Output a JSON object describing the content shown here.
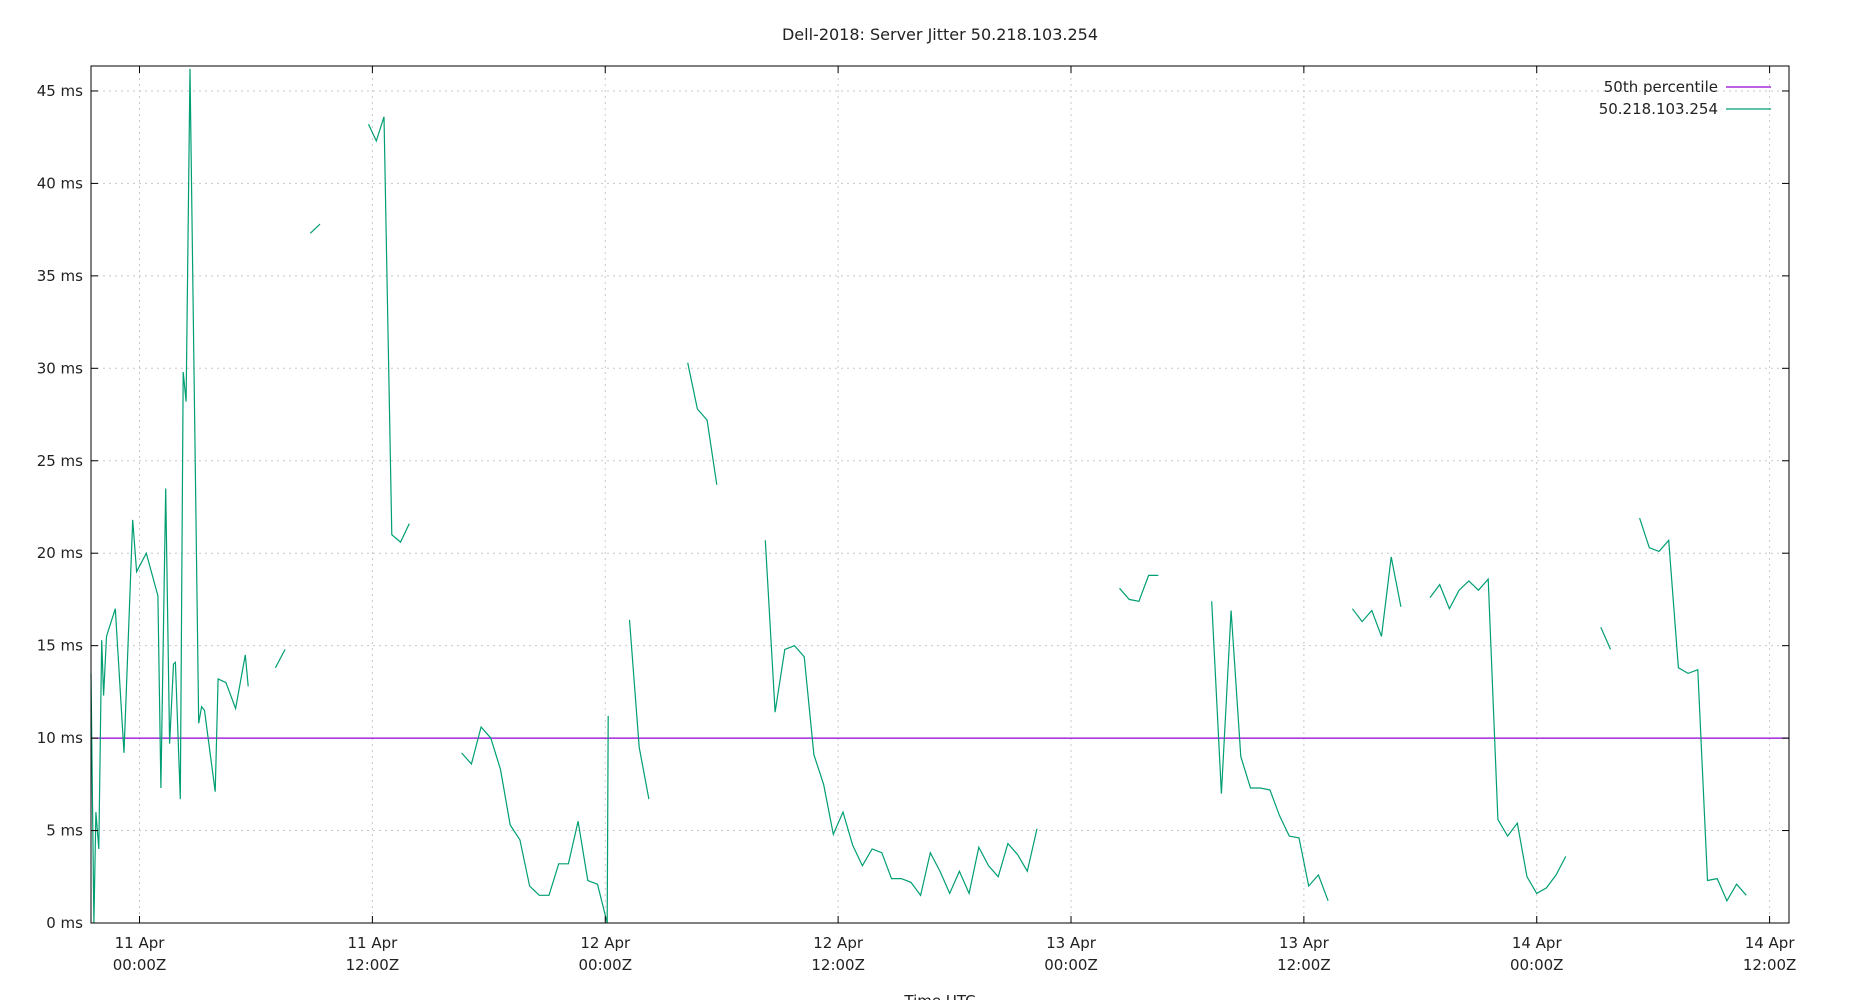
{
  "chart_data": {
    "type": "line",
    "title": "Dell-2018: Server Jitter 50.218.103.254",
    "xlabel": "Time UTC",
    "ylabel": "",
    "x_unit": "hours since 11 Apr 00:00Z",
    "xlim": [
      -2.5,
      85
    ],
    "ylim": [
      0,
      45
    ],
    "y_ticks": [
      0,
      5,
      10,
      15,
      20,
      25,
      30,
      35,
      40,
      45
    ],
    "y_tick_labels": [
      "0 ms",
      "5 ms",
      "10 ms",
      "15 ms",
      "20 ms",
      "25 ms",
      "30 ms",
      "35 ms",
      "40 ms",
      "45 ms"
    ],
    "x_ticks": [
      {
        "x": 0,
        "line1": "11 Apr",
        "line2": "00:00Z"
      },
      {
        "x": 12,
        "line1": "11 Apr",
        "line2": "12:00Z"
      },
      {
        "x": 24,
        "line1": "12 Apr",
        "line2": "00:00Z"
      },
      {
        "x": 36,
        "line1": "12 Apr",
        "line2": "12:00Z"
      },
      {
        "x": 48,
        "line1": "13 Apr",
        "line2": "00:00Z"
      },
      {
        "x": 60,
        "line1": "13 Apr",
        "line2": "12:00Z"
      },
      {
        "x": 72,
        "line1": "14 Apr",
        "line2": "00:00Z"
      },
      {
        "x": 84,
        "line1": "14 Apr",
        "line2": "12:00Z"
      }
    ],
    "grid": true,
    "legend_position": "top-right",
    "series": [
      {
        "name": "50th percentile",
        "color": "#9400d3",
        "constant": 10.0
      },
      {
        "name": "50.218.103.254",
        "color": "#009e73",
        "segments": [
          [
            [
              -2.5,
              13.5
            ],
            [
              -2.35,
              0.0
            ],
            [
              -2.25,
              6.0
            ],
            [
              -2.1,
              4.0
            ],
            [
              -1.95,
              15.3
            ],
            [
              -1.85,
              12.3
            ],
            [
              -1.7,
              15.5
            ],
            [
              -1.25,
              17.0
            ],
            [
              -0.8,
              9.2
            ],
            [
              -0.35,
              21.8
            ],
            [
              -0.15,
              19.0
            ],
            [
              0.35,
              20.0
            ],
            [
              0.95,
              17.7
            ],
            [
              1.1,
              7.3
            ],
            [
              1.35,
              23.5
            ],
            [
              1.55,
              9.7
            ],
            [
              1.75,
              14.0
            ],
            [
              1.85,
              14.1
            ],
            [
              2.1,
              6.7
            ],
            [
              2.25,
              29.8
            ],
            [
              2.4,
              28.2
            ],
            [
              2.6,
              46.2
            ],
            [
              3.05,
              10.8
            ],
            [
              3.2,
              11.7
            ],
            [
              3.35,
              11.5
            ],
            [
              3.9,
              7.1
            ],
            [
              4.05,
              13.2
            ],
            [
              4.45,
              13.0
            ],
            [
              4.95,
              11.6
            ],
            [
              5.45,
              14.5
            ],
            [
              5.6,
              12.8
            ]
          ],
          [
            [
              7.0,
              13.8
            ],
            [
              7.5,
              14.8
            ]
          ],
          [
            [
              8.8,
              37.3
            ],
            [
              9.3,
              37.8
            ]
          ],
          [
            [
              11.8,
              43.2
            ],
            [
              12.2,
              42.3
            ],
            [
              12.6,
              43.6
            ],
            [
              13.0,
              21.0
            ],
            [
              13.45,
              20.6
            ],
            [
              13.9,
              21.6
            ]
          ],
          [
            [
              16.6,
              9.2
            ],
            [
              17.1,
              8.6
            ],
            [
              17.6,
              10.6
            ],
            [
              18.1,
              10.0
            ],
            [
              18.6,
              8.3
            ],
            [
              19.1,
              5.3
            ],
            [
              19.6,
              4.5
            ],
            [
              20.1,
              2.0
            ],
            [
              20.6,
              1.5
            ],
            [
              21.1,
              1.5
            ],
            [
              21.6,
              3.2
            ],
            [
              22.1,
              3.2
            ],
            [
              22.6,
              5.5
            ],
            [
              23.1,
              2.3
            ],
            [
              23.6,
              2.1
            ],
            [
              24.1,
              0.0
            ],
            [
              24.15,
              11.2
            ]
          ],
          [
            [
              25.25,
              16.4
            ],
            [
              25.75,
              9.5
            ],
            [
              26.25,
              6.7
            ]
          ],
          [
            [
              28.25,
              30.3
            ],
            [
              28.75,
              27.8
            ],
            [
              29.25,
              27.2
            ],
            [
              29.75,
              23.7
            ]
          ],
          [
            [
              32.25,
              20.7
            ],
            [
              32.75,
              11.4
            ],
            [
              33.25,
              14.8
            ],
            [
              33.75,
              15.0
            ],
            [
              34.25,
              14.4
            ],
            [
              34.75,
              9.1
            ],
            [
              35.25,
              7.5
            ],
            [
              35.75,
              4.8
            ],
            [
              36.25,
              6.0
            ],
            [
              36.75,
              4.2
            ],
            [
              37.25,
              3.1
            ],
            [
              37.75,
              4.0
            ],
            [
              38.25,
              3.8
            ],
            [
              38.75,
              2.4
            ],
            [
              39.25,
              2.4
            ],
            [
              39.75,
              2.2
            ],
            [
              40.25,
              1.5
            ],
            [
              40.75,
              3.8
            ],
            [
              41.25,
              2.8
            ],
            [
              41.75,
              1.6
            ],
            [
              42.25,
              2.8
            ],
            [
              42.75,
              1.6
            ],
            [
              43.25,
              4.1
            ],
            [
              43.75,
              3.1
            ],
            [
              44.25,
              2.5
            ],
            [
              44.75,
              4.3
            ],
            [
              45.25,
              3.7
            ],
            [
              45.75,
              2.8
            ],
            [
              46.25,
              5.1
            ]
          ],
          [
            [
              50.5,
              18.1
            ],
            [
              51.0,
              17.5
            ],
            [
              51.5,
              17.4
            ],
            [
              52.0,
              18.8
            ],
            [
              52.5,
              18.8
            ]
          ],
          [
            [
              55.25,
              17.4
            ],
            [
              55.75,
              7.0
            ],
            [
              56.25,
              16.9
            ],
            [
              56.75,
              9.0
            ],
            [
              57.25,
              7.3
            ],
            [
              57.75,
              7.3
            ],
            [
              58.25,
              7.2
            ],
            [
              58.75,
              5.8
            ],
            [
              59.25,
              4.7
            ],
            [
              59.75,
              4.6
            ],
            [
              60.25,
              2.0
            ],
            [
              60.75,
              2.6
            ],
            [
              61.25,
              1.2
            ]
          ],
          [
            [
              62.5,
              17.0
            ],
            [
              63.0,
              16.3
            ],
            [
              63.5,
              16.9
            ],
            [
              64.0,
              15.5
            ],
            [
              64.5,
              19.8
            ],
            [
              65.0,
              17.1
            ]
          ],
          [
            [
              66.5,
              17.6
            ],
            [
              67.0,
              18.3
            ],
            [
              67.5,
              17.0
            ],
            [
              68.0,
              18.0
            ],
            [
              68.5,
              18.5
            ],
            [
              69.0,
              18.0
            ],
            [
              69.5,
              18.6
            ],
            [
              70.0,
              5.6
            ],
            [
              70.5,
              4.7
            ],
            [
              71.0,
              5.4
            ],
            [
              71.5,
              2.5
            ],
            [
              72.0,
              1.6
            ],
            [
              72.5,
              1.9
            ],
            [
              73.0,
              2.6
            ],
            [
              73.5,
              3.6
            ]
          ],
          [
            [
              75.3,
              16.0
            ],
            [
              75.8,
              14.8
            ]
          ],
          [
            [
              77.3,
              21.9
            ],
            [
              77.8,
              20.3
            ],
            [
              78.3,
              20.1
            ],
            [
              78.8,
              20.7
            ],
            [
              79.3,
              13.8
            ],
            [
              79.8,
              13.5
            ],
            [
              80.3,
              13.7
            ],
            [
              80.8,
              2.3
            ],
            [
              81.3,
              2.4
            ],
            [
              81.8,
              1.2
            ],
            [
              82.3,
              2.1
            ],
            [
              82.8,
              1.5
            ]
          ]
        ]
      }
    ]
  }
}
